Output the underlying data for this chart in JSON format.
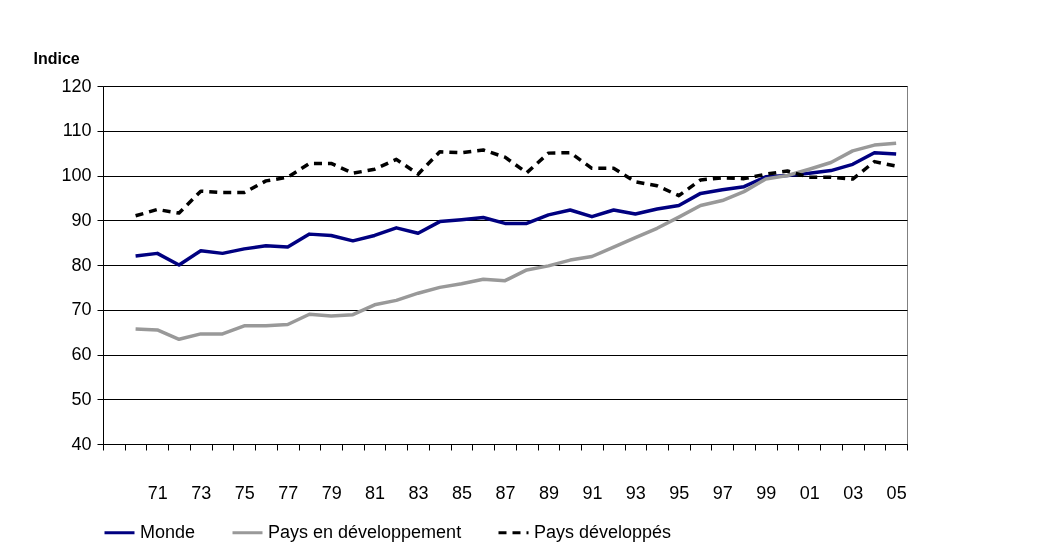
{
  "chart_data": {
    "type": "line",
    "ylabel": "Indice",
    "categories": [
      null,
      null,
      "71",
      null,
      "73",
      null,
      "75",
      null,
      "77",
      null,
      "79",
      null,
      "81",
      null,
      "83",
      null,
      "85",
      null,
      "87",
      null,
      "89",
      null,
      "91",
      null,
      "93",
      null,
      "95",
      null,
      "97",
      null,
      "99",
      null,
      "01",
      null,
      "03",
      null,
      "05"
    ],
    "series": [
      {
        "name": "Monde",
        "color": "#000080",
        "line_style": "solid",
        "values": [
          null,
          82,
          82.6,
          80,
          83.2,
          82.6,
          83.6,
          84.3,
          84,
          86.9,
          86.6,
          85.4,
          86.6,
          88.3,
          87.1,
          89.7,
          90.1,
          90.6,
          89.3,
          89.3,
          91.2,
          92.3,
          90.8,
          92.3,
          91.4,
          92.5,
          93.3,
          96,
          96.8,
          97.5,
          99.7,
          100,
          100.5,
          101.1,
          102.5,
          105.1,
          104.8
        ]
      },
      {
        "name": "Pays en développement",
        "color": "#999999",
        "line_style": "solid",
        "values": [
          null,
          65.7,
          65.5,
          63.4,
          64.6,
          64.6,
          66.4,
          66.4,
          66.7,
          69,
          68.6,
          68.9,
          71.1,
          72.1,
          73.7,
          75,
          75.8,
          76.8,
          76.5,
          78.9,
          79.8,
          81.1,
          81.9,
          84,
          86.1,
          88.2,
          90.7,
          93.3,
          94.4,
          96.4,
          99.2,
          100,
          101.4,
          102.9,
          105.5,
          106.8,
          107.2
        ]
      },
      {
        "name": "Pays développés",
        "color": "#000000",
        "line_style": "dashed",
        "values": [
          null,
          91,
          92.4,
          91.6,
          96.5,
          96.2,
          96.2,
          98.8,
          99.6,
          102.7,
          102.7,
          100.5,
          101.4,
          103.6,
          100.3,
          105.3,
          105.1,
          105.7,
          104.1,
          100.6,
          105,
          105.1,
          101.6,
          101.6,
          98.6,
          97.7,
          95.5,
          99,
          99.5,
          99.3,
          100.3,
          101,
          99.6,
          99.6,
          99.2,
          103.1,
          102.1
        ]
      }
    ],
    "ylim": [
      40,
      120
    ],
    "yticks": [
      40,
      50,
      60,
      70,
      80,
      90,
      100,
      110,
      120
    ],
    "grid": "y",
    "legend": "bottom"
  }
}
